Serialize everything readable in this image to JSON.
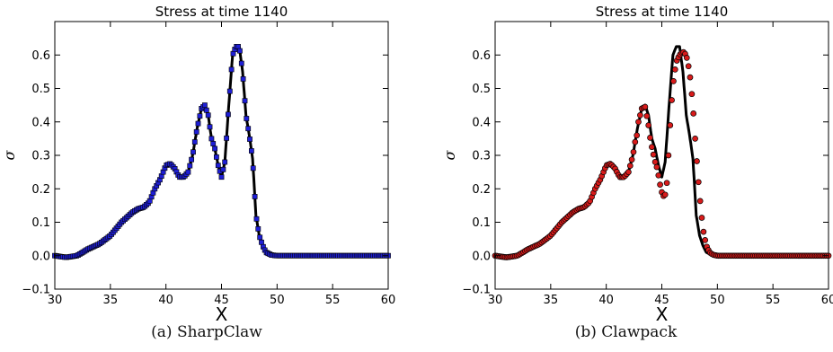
{
  "colors": {
    "line": "#000000",
    "sharpclaw_marker": "#1f1fd6",
    "clawpack_marker": "#d81b1b",
    "marker_edge": "#000000"
  },
  "captions": {
    "a": "(a) SharpClaw",
    "b": "(b) Clawpack"
  },
  "chart_data": [
    {
      "type": "scatter",
      "title": "Stress at time 1140",
      "xlabel": "X",
      "ylabel": "σ",
      "xlim": [
        30,
        60
      ],
      "ylim": [
        -0.1,
        0.7
      ],
      "xticks": [
        "30",
        "35",
        "40",
        "45",
        "50",
        "55",
        "60"
      ],
      "yticks": [
        "−0.1",
        "0.0",
        "0.1",
        "0.2",
        "0.3",
        "0.4",
        "0.5",
        "0.6"
      ],
      "grid": false,
      "legend": "none",
      "reference_curve": {
        "style": "solid black line",
        "x": [
          30,
          31,
          32,
          33,
          34,
          35,
          35.5,
          36,
          36.5,
          37,
          37.5,
          38,
          38.5,
          39,
          39.5,
          40,
          40.4,
          40.8,
          41.2,
          41.6,
          42,
          42.4,
          42.8,
          43.2,
          43.5,
          43.8,
          44.1,
          44.4,
          44.7,
          45,
          45.3,
          45.7,
          46,
          46.3,
          46.6,
          46.9,
          47.2,
          47.5,
          47.8,
          48.1,
          48.4,
          48.7,
          49,
          49.5,
          50,
          52,
          55,
          60
        ],
        "y": [
          0.0,
          -0.005,
          0.0,
          0.02,
          0.035,
          0.06,
          0.08,
          0.1,
          0.115,
          0.13,
          0.14,
          0.145,
          0.16,
          0.2,
          0.23,
          0.27,
          0.275,
          0.26,
          0.235,
          0.235,
          0.25,
          0.3,
          0.38,
          0.44,
          0.45,
          0.42,
          0.35,
          0.32,
          0.27,
          0.235,
          0.28,
          0.47,
          0.6,
          0.625,
          0.625,
          0.55,
          0.42,
          0.36,
          0.29,
          0.12,
          0.06,
          0.03,
          0.01,
          0.002,
          0.0,
          0.0,
          0.0,
          0.0
        ]
      },
      "markers": {
        "name": "SharpClaw",
        "spacing": 0.15,
        "follows_curve": true
      }
    },
    {
      "type": "scatter",
      "title": "Stress at time 1140",
      "xlabel": "X",
      "ylabel": "σ",
      "xlim": [
        30,
        60
      ],
      "ylim": [
        -0.1,
        0.7
      ],
      "xticks": [
        "30",
        "35",
        "40",
        "45",
        "50",
        "55",
        "60"
      ],
      "yticks": [
        "−0.1",
        "0.0",
        "0.1",
        "0.2",
        "0.3",
        "0.4",
        "0.5",
        "0.6"
      ],
      "grid": false,
      "legend": "none",
      "reference_curve": {
        "style": "solid black line",
        "x": [
          30,
          31,
          32,
          33,
          34,
          35,
          35.5,
          36,
          36.5,
          37,
          37.5,
          38,
          38.5,
          39,
          39.5,
          40,
          40.4,
          40.8,
          41.2,
          41.6,
          42,
          42.4,
          42.8,
          43.2,
          43.5,
          43.8,
          44.1,
          44.4,
          44.7,
          45,
          45.3,
          45.7,
          46,
          46.3,
          46.6,
          46.9,
          47.2,
          47.5,
          47.8,
          48.1,
          48.4,
          48.7,
          49,
          49.5,
          50,
          52,
          55,
          60
        ],
        "y": [
          0.0,
          -0.005,
          0.0,
          0.02,
          0.035,
          0.06,
          0.08,
          0.1,
          0.115,
          0.13,
          0.14,
          0.145,
          0.16,
          0.2,
          0.23,
          0.27,
          0.275,
          0.26,
          0.235,
          0.235,
          0.25,
          0.3,
          0.38,
          0.44,
          0.45,
          0.42,
          0.35,
          0.32,
          0.27,
          0.235,
          0.28,
          0.47,
          0.6,
          0.625,
          0.625,
          0.55,
          0.42,
          0.36,
          0.29,
          0.12,
          0.06,
          0.03,
          0.01,
          0.002,
          0.0,
          0.0,
          0.0,
          0.0
        ]
      },
      "markers": {
        "name": "Clawpack",
        "spacing": 0.15,
        "follows_curve_until": 42.6,
        "curve_x": [
          42.6,
          42.9,
          43.2,
          43.5,
          43.8,
          44.0,
          44.2,
          44.4,
          44.6,
          44.8,
          45.0,
          45.2,
          45.4,
          45.6,
          45.8,
          46.0,
          46.3,
          46.6,
          46.9,
          47.2,
          47.5,
          47.8,
          48.0,
          48.2,
          48.4,
          48.7,
          49.0,
          49.3,
          49.6,
          50.0,
          60
        ],
        "curve_y": [
          0.32,
          0.4,
          0.44,
          0.445,
          0.39,
          0.34,
          0.31,
          0.28,
          0.26,
          0.22,
          0.19,
          0.175,
          0.19,
          0.3,
          0.42,
          0.51,
          0.58,
          0.6,
          0.61,
          0.6,
          0.55,
          0.45,
          0.35,
          0.26,
          0.18,
          0.08,
          0.03,
          0.01,
          0.003,
          0.0,
          0.0
        ]
      }
    }
  ]
}
